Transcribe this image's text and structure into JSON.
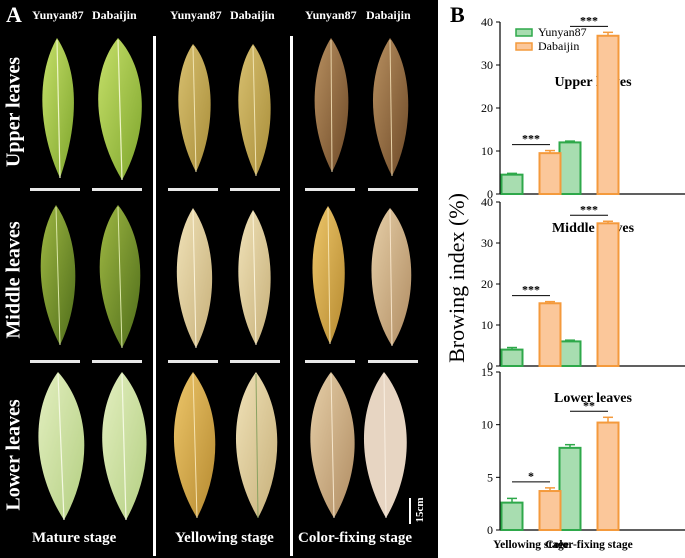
{
  "panel_a": {
    "letter": "A",
    "column_headers": [
      "Yunyan87",
      "Dabaijin",
      "Yunyan87",
      "Dabaijin",
      "Yunyan87",
      "Dabaijin"
    ],
    "row_labels": [
      "Upper leaves",
      "Middle leaves",
      "Lower leaves"
    ],
    "stage_labels": [
      "Mature stage",
      "Yellowing stage",
      "Color-fixing stage"
    ],
    "scale_label": "15cm"
  },
  "chart_data": {
    "letter": "B",
    "type": "bar",
    "ylabel": "Browing index (%)",
    "categories": [
      "Yellowing stage",
      "Color-fixing stage"
    ],
    "legend": [
      {
        "name": "Yunyan87",
        "fill": "#a8ddb0",
        "stroke": "#2ea84a"
      },
      {
        "name": "Dabaijin",
        "fill": "#fbc79a",
        "stroke": "#f49a3c"
      }
    ],
    "legend_position": "top-left",
    "panels": [
      {
        "title": "Upper leaves",
        "ylim": [
          0,
          40
        ],
        "yticks": [
          0,
          10,
          20,
          30,
          40
        ],
        "series": [
          {
            "name": "Yunyan87",
            "values": [
              4.5,
              12.0
            ],
            "errors": [
              0.3,
              0.3
            ]
          },
          {
            "name": "Dabaijin",
            "values": [
              9.5,
              36.8
            ],
            "errors": [
              0.6,
              0.8
            ]
          }
        ],
        "significance": [
          "***",
          "***"
        ]
      },
      {
        "title": "Middle leaves",
        "ylim": [
          0,
          40
        ],
        "yticks": [
          0,
          10,
          20,
          30,
          40
        ],
        "series": [
          {
            "name": "Yunyan87",
            "values": [
              4.0,
              6.0
            ],
            "errors": [
              0.5,
              0.3
            ]
          },
          {
            "name": "Dabaijin",
            "values": [
              15.3,
              34.8
            ],
            "errors": [
              0.4,
              0.5
            ]
          }
        ],
        "significance": [
          "***",
          "***"
        ]
      },
      {
        "title": "Lower leaves",
        "ylim": [
          0,
          15
        ],
        "yticks": [
          0,
          5,
          10,
          15
        ],
        "series": [
          {
            "name": "Yunyan87",
            "values": [
              2.6,
              7.8
            ],
            "errors": [
              0.4,
              0.3
            ]
          },
          {
            "name": "Dabaijin",
            "values": [
              3.7,
              10.2
            ],
            "errors": [
              0.3,
              0.5
            ]
          }
        ],
        "significance": [
          "*",
          "**"
        ]
      }
    ]
  }
}
